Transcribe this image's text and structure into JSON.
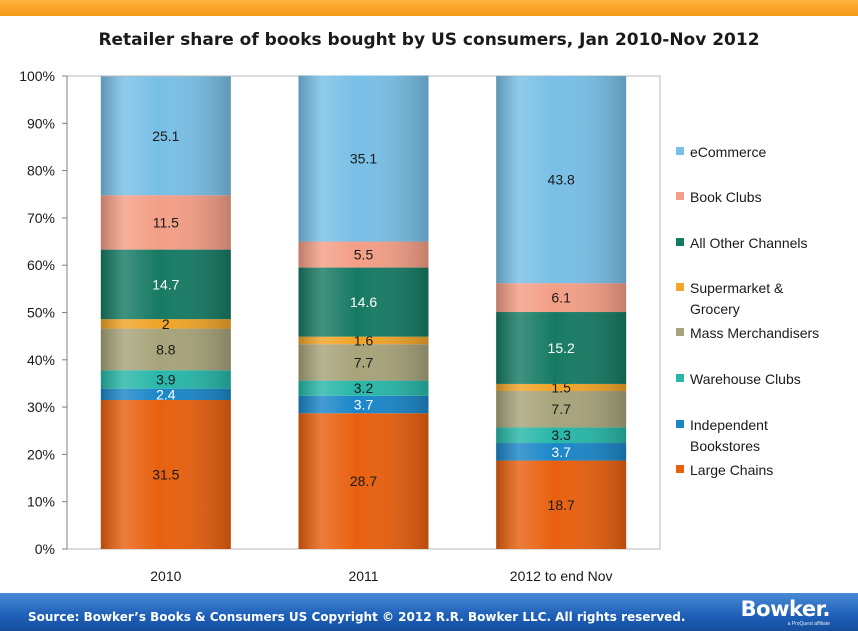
{
  "chart_data": {
    "type": "bar",
    "stacked": true,
    "title": "Retailer share of books bought by US consumers, Jan 2010-Nov 2012",
    "categories": [
      "2010",
      "2011",
      "2012 to end Nov"
    ],
    "ylim": [
      0,
      100
    ],
    "yticks": [
      "0%",
      "10%",
      "20%",
      "30%",
      "40%",
      "50%",
      "60%",
      "70%",
      "80%",
      "90%",
      "100%"
    ],
    "grid": false,
    "legend_position": "right",
    "series": [
      {
        "name": "Large Chains",
        "color": "#e8600f",
        "values": [
          31.5,
          28.7,
          18.7
        ]
      },
      {
        "name": "Independent Bookstores",
        "color": "#1a86c8",
        "values": [
          2.4,
          3.7,
          3.7
        ]
      },
      {
        "name": "Warehouse Clubs",
        "color": "#27b7a8",
        "values": [
          3.9,
          3.2,
          3.3
        ]
      },
      {
        "name": "Mass Merchandisers",
        "color": "#a7a37a",
        "values": [
          8.8,
          7.7,
          7.7
        ]
      },
      {
        "name": "Supermarket & Grocery",
        "color": "#f0a428",
        "values": [
          2,
          1.6,
          1.5
        ]
      },
      {
        "name": "All Other Channels",
        "color": "#167a63",
        "values": [
          14.7,
          14.6,
          15.2
        ]
      },
      {
        "name": "Book Clubs",
        "color": "#f39e86",
        "values": [
          11.5,
          5.5,
          6.1
        ]
      },
      {
        "name": "eCommerce",
        "color": "#78bfe6",
        "values": [
          25.1,
          35.1,
          43.8
        ]
      }
    ],
    "legend_lines": {
      "eCommerce": [
        "eCommerce"
      ],
      "Book Clubs": [
        "Book Clubs"
      ],
      "All Other Channels": [
        "All Other Channels"
      ],
      "Supermarket & Grocery": [
        "Supermarket &",
        "Grocery"
      ],
      "Mass Merchandisers": [
        "Mass Merchandisers"
      ],
      "Warehouse Clubs": [
        "Warehouse Clubs"
      ],
      "Independent Bookstores": [
        "Independent",
        "Bookstores"
      ],
      "Large Chains": [
        "Large Chains"
      ]
    },
    "label_colors": {
      "Large Chains": "#1a1a1a",
      "Independent Bookstores": "#ffffff",
      "Warehouse Clubs": "#1a1a1a",
      "Mass Merchandisers": "#1a1a1a",
      "Supermarket & Grocery": "#1a1a1a",
      "All Other Channels": "#ffffff",
      "Book Clubs": "#1a1a1a",
      "eCommerce": "#1a1a1a"
    }
  },
  "footer": {
    "source_text": "Source: Bowker’s Books & Consumers US     Copyright © 2012 R.R. Bowker LLC. All rights reserved.",
    "brand": "Bowker.",
    "brand_tagline": "a ProQuest affiliate"
  },
  "colors": {
    "top_bar": "#f29a16",
    "footer_bar": "#1d5fb8"
  }
}
